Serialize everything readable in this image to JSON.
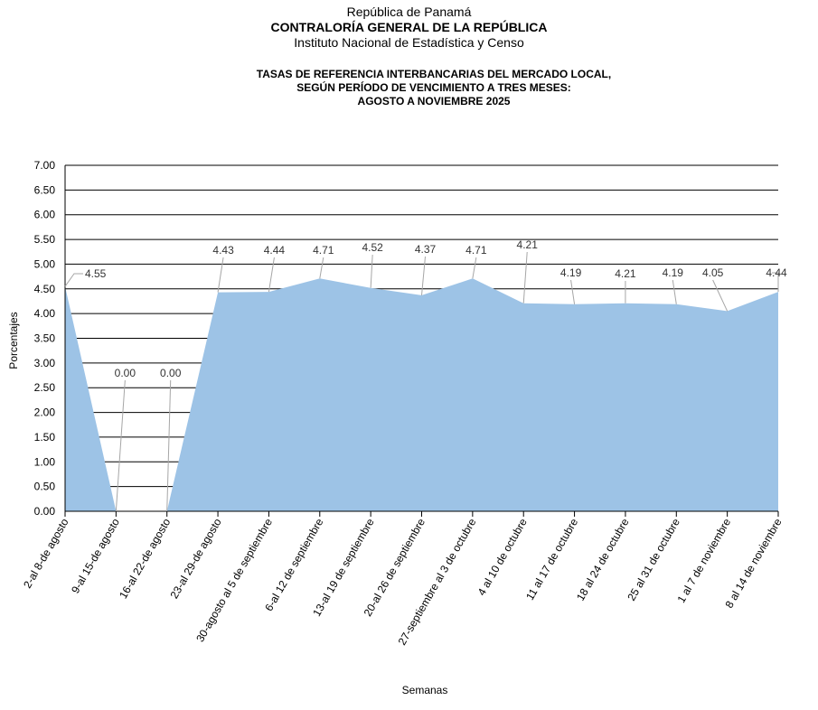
{
  "header": {
    "line1": "República de Panamá",
    "line2": "CONTRALORÍA GENERAL DE LA REPÚBLICA",
    "line3": "Instituto Nacional de Estadística y Censo"
  },
  "chart_data": {
    "type": "area",
    "title_lines": [
      "TASAS DE REFERENCIA INTERBANCARIAS DEL MERCADO LOCAL,",
      "SEGÚN PERÍODO DE VENCIMIENTO A TRES MESES:",
      "AGOSTO A NOVIEMBRE 2025"
    ],
    "xlabel": "Semanas",
    "ylabel": "Porcentajes",
    "ylim": [
      0,
      7
    ],
    "ytick_step": 0.5,
    "grid": "horizontal",
    "color": "#9dc3e6",
    "categories": [
      "2-al 8-de agosto",
      "9-al 15-de agosto",
      "16-al 22-de agosto",
      "23-al 29-de agosto",
      "30-agosto al 5 de septiembre",
      "6-al 12 de septiembre",
      "13-al 19 de septiembre",
      "20-al 26 de septiembre",
      "27-septiembre al 3 de octubre",
      "4 al 10 de octubre",
      "11 al 17 de octubre",
      "18 al 24 de octubre",
      "25 al 31 de octubre",
      "1 al 7 de noviembre",
      "8 al 14 de noviembre"
    ],
    "values": [
      4.55,
      0.0,
      0.0,
      4.43,
      4.44,
      4.71,
      4.52,
      4.37,
      4.71,
      4.21,
      4.19,
      4.21,
      4.19,
      4.05,
      4.44
    ],
    "data_labels": [
      "4.55",
      "0.00",
      "0.00",
      "4.43",
      "4.44",
      "4.71",
      "4.52",
      "4.37",
      "4.71",
      "4.21",
      "4.19",
      "4.21",
      "4.19",
      "4.05",
      "4.44"
    ]
  }
}
